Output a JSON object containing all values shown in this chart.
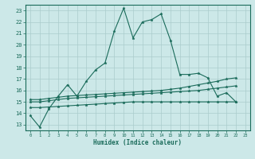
{
  "title": "",
  "xlabel": "Humidex (Indice chaleur)",
  "bg_color": "#cce8e8",
  "grid_color": "#aacccc",
  "line_color": "#1a6b5a",
  "xlim": [
    -0.5,
    23.5
  ],
  "ylim": [
    12.5,
    23.5
  ],
  "yticks": [
    13,
    14,
    15,
    16,
    17,
    18,
    19,
    20,
    21,
    22,
    23
  ],
  "xticks": [
    0,
    1,
    2,
    3,
    4,
    5,
    6,
    7,
    8,
    9,
    10,
    11,
    12,
    13,
    14,
    15,
    16,
    17,
    18,
    19,
    20,
    21,
    22,
    23
  ],
  "series1_y": [
    13.8,
    12.8,
    14.4,
    15.5,
    16.5,
    15.5,
    16.8,
    17.8,
    18.4,
    21.2,
    23.2,
    20.6,
    22.0,
    22.2,
    22.7,
    20.4,
    17.4,
    17.4,
    17.5,
    17.1,
    15.5,
    15.8,
    15.0,
    null
  ],
  "series2_y": [
    15.0,
    15.0,
    15.1,
    15.2,
    15.3,
    15.35,
    15.4,
    15.45,
    15.5,
    15.55,
    15.6,
    15.65,
    15.7,
    15.75,
    15.8,
    15.85,
    15.9,
    15.95,
    16.0,
    16.1,
    16.2,
    16.3,
    16.4,
    null
  ],
  "series3_y": [
    15.2,
    15.2,
    15.3,
    15.4,
    15.5,
    15.55,
    15.6,
    15.65,
    15.7,
    15.75,
    15.8,
    15.85,
    15.9,
    15.95,
    16.0,
    16.1,
    16.2,
    16.35,
    16.5,
    16.65,
    16.8,
    17.0,
    17.1,
    null
  ],
  "series4_y": [
    14.5,
    14.5,
    14.55,
    14.6,
    14.65,
    14.7,
    14.75,
    14.8,
    14.85,
    14.9,
    14.95,
    15.0,
    15.0,
    15.0,
    15.0,
    15.0,
    15.0,
    15.0,
    15.0,
    15.0,
    15.0,
    15.0,
    15.0,
    null
  ]
}
